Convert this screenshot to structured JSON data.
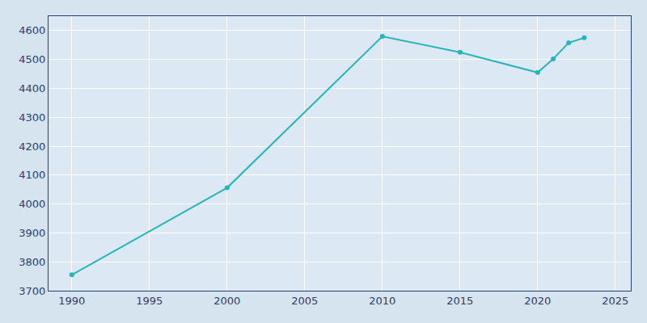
{
  "chart_data": {
    "type": "line",
    "x": [
      1990,
      2000,
      2010,
      2015,
      2020,
      2021,
      2022,
      2023
    ],
    "values": [
      3755,
      4056,
      4580,
      4525,
      4455,
      4502,
      4558,
      4575
    ],
    "color": "#29b5b5",
    "marker": "circle",
    "xlim": [
      1988.5,
      2026
    ],
    "ylim": [
      3700,
      4650
    ],
    "xticks": [
      1990,
      1995,
      2000,
      2005,
      2010,
      2015,
      2020,
      2025
    ],
    "yticks": [
      3700,
      3800,
      3900,
      4000,
      4100,
      4200,
      4300,
      4400,
      4500,
      4600
    ],
    "grid": true
  }
}
